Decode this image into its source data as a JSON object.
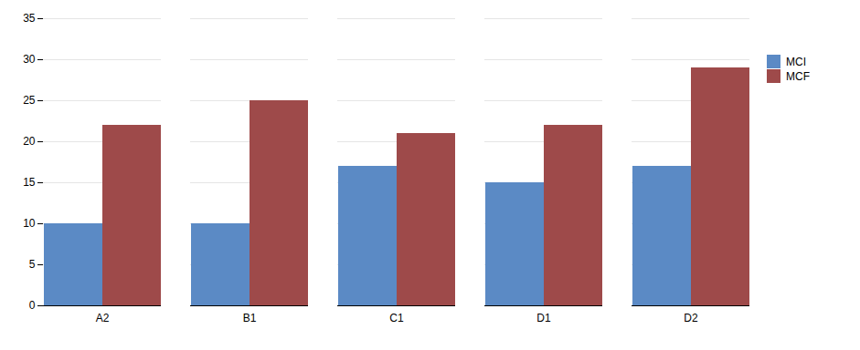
{
  "chart_data": {
    "type": "bar",
    "categories": [
      "A2",
      "B1",
      "C1",
      "D1",
      "D2"
    ],
    "series": [
      {
        "name": "MCI",
        "color": "#5B8AC5",
        "values": [
          10,
          10,
          17,
          15,
          17
        ]
      },
      {
        "name": "MCF",
        "color": "#9E4A4A",
        "values": [
          22,
          25,
          21,
          22,
          29
        ]
      }
    ],
    "ylim": [
      0,
      35
    ],
    "yticks": [
      0,
      5,
      10,
      15,
      20,
      25,
      30,
      35
    ],
    "grid": true,
    "legend": "right"
  }
}
